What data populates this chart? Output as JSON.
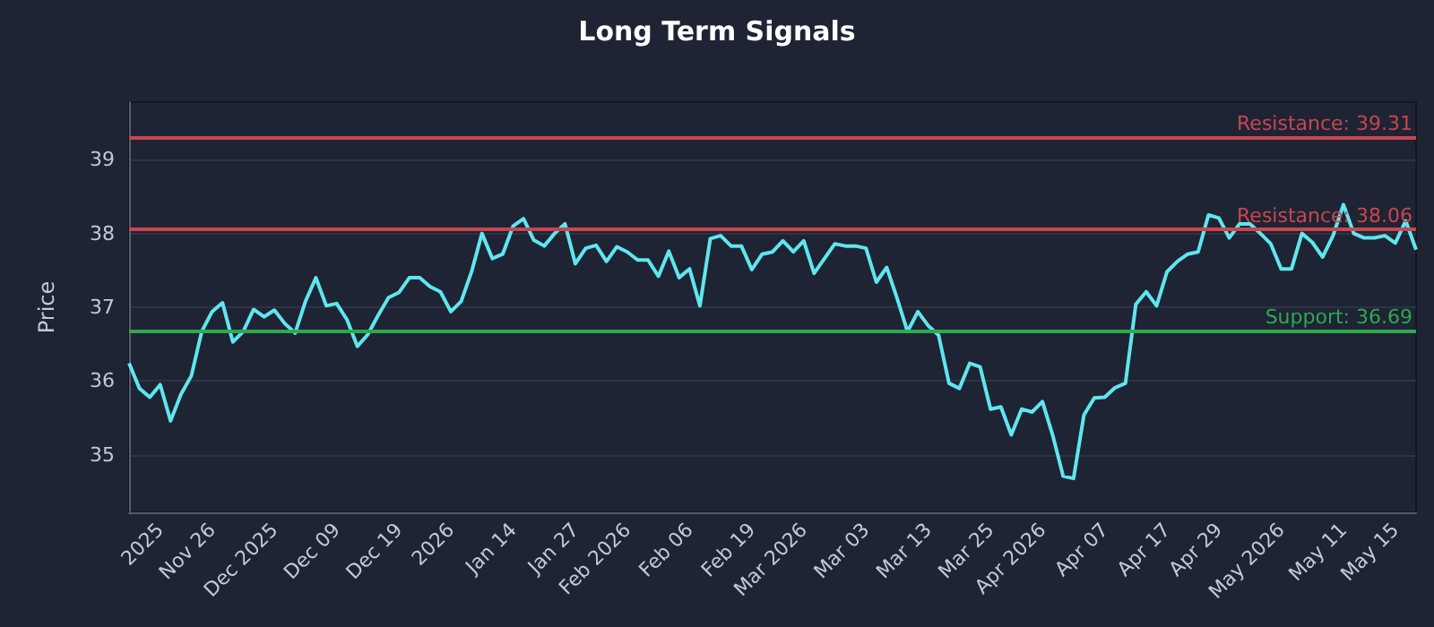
{
  "chart_data": {
    "type": "line",
    "title": "Long Term Signals",
    "ylabel": "Price",
    "categories": [
      null,
      null,
      null,
      "2025",
      null,
      null,
      null,
      null,
      "Nov 26",
      null,
      null,
      null,
      null,
      null,
      "Dec 2025",
      null,
      null,
      null,
      null,
      null,
      "Dec 09",
      null,
      null,
      null,
      null,
      null,
      "Dec 19",
      null,
      null,
      null,
      null,
      "2026",
      null,
      null,
      null,
      null,
      null,
      "Jan 14",
      null,
      null,
      null,
      null,
      null,
      "Jan 27",
      null,
      null,
      null,
      null,
      "Feb 2026",
      null,
      null,
      null,
      null,
      null,
      "Feb 06",
      null,
      null,
      null,
      null,
      null,
      "Feb 19",
      null,
      null,
      null,
      null,
      "Mar 2026",
      null,
      null,
      null,
      null,
      null,
      "Mar 03",
      null,
      null,
      null,
      null,
      null,
      "Mar 13",
      null,
      null,
      null,
      null,
      null,
      "Mar 25",
      null,
      null,
      null,
      null,
      "Apr 2026",
      null,
      null,
      null,
      null,
      null,
      "Apr 07",
      null,
      null,
      null,
      null,
      null,
      "Apr 17",
      null,
      null,
      null,
      null,
      "Apr 29",
      null,
      null,
      null,
      null,
      null,
      "May 2026",
      null,
      null,
      null,
      null,
      null,
      "May 11",
      null,
      null,
      null,
      null,
      "May 15",
      null,
      null
    ],
    "series": [
      {
        "color": "#5fe6ef",
        "values": [
          36.24,
          35.9,
          35.78,
          35.95,
          35.46,
          35.82,
          36.07,
          36.67,
          36.94,
          37.06,
          36.53,
          36.67,
          36.97,
          36.87,
          36.96,
          36.78,
          36.65,
          37.08,
          37.4,
          37.02,
          37.05,
          36.83,
          36.47,
          36.63,
          36.89,
          37.13,
          37.2,
          37.4,
          37.4,
          37.28,
          37.21,
          36.94,
          37.08,
          37.48,
          38.0,
          37.66,
          37.72,
          38.1,
          38.2,
          37.91,
          37.83,
          38.0,
          38.13,
          37.59,
          37.8,
          37.84,
          37.62,
          37.82,
          37.75,
          37.64,
          37.64,
          37.42,
          37.76,
          37.4,
          37.52,
          37.02,
          37.93,
          37.97,
          37.83,
          37.83,
          37.51,
          37.72,
          37.75,
          37.9,
          37.75,
          37.9,
          37.46,
          37.66,
          37.86,
          37.83,
          37.83,
          37.8,
          37.34,
          37.54,
          37.12,
          36.67,
          36.94,
          36.75,
          36.62,
          35.97,
          35.9,
          36.24,
          36.19,
          35.62,
          35.65,
          35.27,
          35.62,
          35.58,
          35.72,
          35.26,
          34.71,
          34.68,
          35.54,
          35.77,
          35.78,
          35.91,
          35.97,
          37.04,
          37.21,
          37.02,
          37.48,
          37.62,
          37.72,
          37.75,
          38.25,
          38.21,
          37.94,
          38.13,
          38.13,
          38.0,
          37.86,
          37.52,
          37.52,
          38.0,
          37.88,
          37.68,
          37.97,
          38.39,
          38.0,
          37.94,
          37.94,
          37.97,
          37.87,
          38.17,
          37.78
        ]
      }
    ],
    "ylim": [
      34.22,
      39.78
    ],
    "yticks": [
      35,
      36,
      37,
      38,
      39
    ],
    "grid": "y",
    "marker": "none",
    "line_style": "solid",
    "ref_lines": [
      {
        "axis": "y",
        "value": 39.31,
        "label": "Resistance: 39.31",
        "color": "#c8464f"
      },
      {
        "axis": "y",
        "value": 38.06,
        "label": "Resistance: 38.06",
        "color": "#c8464f"
      },
      {
        "axis": "y",
        "value": 36.69,
        "label": "Support: 36.69",
        "color": "#2fa84f"
      }
    ]
  }
}
